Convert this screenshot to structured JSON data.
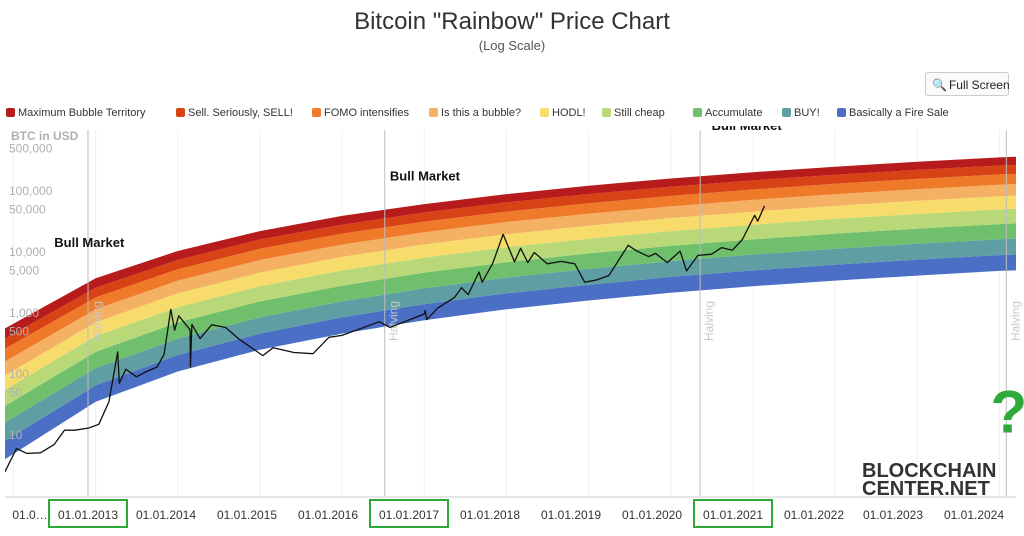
{
  "page": {
    "title": "Bitcoin \"Rainbow\" Price Chart",
    "subtitle": "(Log Scale)",
    "fullscreen_label": "Full Screen",
    "fullscreen_icon": "magnifier-icon"
  },
  "legend": [
    {
      "label": "Maximum Bubble Territory",
      "color": "#b71c1c"
    },
    {
      "label": "Sell. Seriously, SELL!",
      "color": "#d84315"
    },
    {
      "label": "FOMO intensifies",
      "color": "#ef7a2a"
    },
    {
      "label": "Is this a bubble?",
      "color": "#f4b163"
    },
    {
      "label": "HODL!",
      "color": "#f8dc6b"
    },
    {
      "label": "Still cheap",
      "color": "#b9d979"
    },
    {
      "label": "Accumulate",
      "color": "#6fbf6d"
    },
    {
      "label": "BUY!",
      "color": "#5f9fa3"
    },
    {
      "label": "Basically a Fire Sale",
      "color": "#4a6fc4"
    }
  ],
  "chart_data": {
    "type": "line",
    "title": "Bitcoin \"Rainbow\" Price Chart",
    "subtitle": "(Log Scale)",
    "ylabel": "BTC in USD",
    "yscale": "log",
    "ylim": [
      1,
      1000000
    ],
    "xlim": [
      "2011-11-25",
      "2024-03-15"
    ],
    "y_ticks": [
      "500,000",
      "100,000",
      "50,000",
      "10,000",
      "5,000",
      "1,000",
      "500",
      "100",
      "50",
      "10"
    ],
    "y_tick_values": [
      500000,
      100000,
      50000,
      10000,
      5000,
      1000,
      500,
      100,
      50,
      10
    ],
    "x_tick_labels": [
      "01.0…",
      "01.01.2013",
      "01.01.2014",
      "01.01.2015",
      "01.01.2016",
      "01.01.2017",
      "01.01.2018",
      "01.01.2019",
      "01.01.2020",
      "01.01.2021",
      "01.01.2022",
      "01.01.2023",
      "01.01.2024"
    ],
    "x_tick_dates": [
      "2012-01-01",
      "2013-01-01",
      "2014-01-01",
      "2015-01-01",
      "2016-01-01",
      "2017-01-01",
      "2018-01-01",
      "2019-01-01",
      "2020-01-01",
      "2021-01-01",
      "2022-01-01",
      "2023-01-01",
      "2024-01-01"
    ],
    "highlighted_x_ticks": [
      "01.01.2013",
      "01.01.2017",
      "01.01.2021"
    ],
    "halvings": [
      {
        "label": "Halving",
        "date": "2012-11-28"
      },
      {
        "label": "Halving",
        "date": "2016-07-09"
      },
      {
        "label": "Halving",
        "date": "2020-05-11"
      },
      {
        "label": "Halving",
        "date": "2024-02-01"
      }
    ],
    "annotations": [
      {
        "text": "Bull Market",
        "date": "2012-07-01",
        "value": 12000
      },
      {
        "text": "Bull Market",
        "date": "2016-08-01",
        "value": 150000
      },
      {
        "text": "Bull Market",
        "date": "2020-07-01",
        "value": 1000000
      },
      {
        "text": "?",
        "date": "2024-01-15",
        "value": 20
      }
    ],
    "band_edges": [
      {
        "date": "2011-11-25",
        "values": [
          4,
          8,
          16,
          30,
          55,
          95,
          160,
          260,
          380,
          560
        ]
      },
      {
        "date": "2013-01-01",
        "values": [
          35,
          65,
          125,
          230,
          420,
          700,
          1150,
          1800,
          2600,
          3700
        ]
      },
      {
        "date": "2014-01-01",
        "values": [
          110,
          205,
          380,
          700,
          1250,
          2100,
          3400,
          5200,
          7400,
          10400
        ]
      },
      {
        "date": "2015-01-01",
        "values": [
          250,
          460,
          850,
          1550,
          2750,
          4600,
          7400,
          11300,
          16000,
          22000
        ]
      },
      {
        "date": "2016-01-01",
        "values": [
          460,
          850,
          1550,
          2800,
          5000,
          8300,
          13200,
          20000,
          28000,
          39000
        ]
      },
      {
        "date": "2017-01-01",
        "values": [
          760,
          1400,
          2550,
          4600,
          8100,
          13300,
          21000,
          31500,
          44500,
          61000
        ]
      },
      {
        "date": "2018-01-01",
        "values": [
          1150,
          2100,
          3800,
          6800,
          12000,
          19500,
          31000,
          46000,
          65000,
          89000
        ]
      },
      {
        "date": "2019-01-01",
        "values": [
          1600,
          2900,
          5300,
          9500,
          16500,
          27000,
          42500,
          63000,
          89000,
          122000
        ]
      },
      {
        "date": "2020-01-01",
        "values": [
          2150,
          3900,
          7100,
          12600,
          22000,
          36000,
          56000,
          83000,
          117000,
          160000
        ]
      },
      {
        "date": "2021-01-01",
        "values": [
          2750,
          5000,
          9100,
          16100,
          28000,
          46000,
          71500,
          106000,
          149000,
          203000
        ]
      },
      {
        "date": "2022-01-01",
        "values": [
          3400,
          6200,
          11300,
          20000,
          35000,
          57000,
          88500,
          131000,
          184000,
          250000
        ]
      },
      {
        "date": "2023-01-01",
        "values": [
          4100,
          7500,
          13700,
          24200,
          42000,
          69000,
          107000,
          158000,
          222000,
          301000
        ]
      },
      {
        "date": "2024-01-01",
        "values": [
          4900,
          8900,
          16200,
          28700,
          50000,
          82000,
          127000,
          187000,
          262000,
          356000
        ]
      },
      {
        "date": "2024-03-15",
        "values": [
          5000,
          9100,
          16600,
          29400,
          51200,
          84000,
          130000,
          191000,
          268000,
          364000
        ]
      }
    ],
    "series": [
      {
        "name": "BTC price",
        "color": "#111111",
        "points": [
          [
            "2011-11-25",
            2.5
          ],
          [
            "2012-01-15",
            6
          ],
          [
            "2012-03-01",
            5
          ],
          [
            "2012-05-01",
            5.1
          ],
          [
            "2012-07-01",
            7
          ],
          [
            "2012-08-15",
            12
          ],
          [
            "2012-10-01",
            12
          ],
          [
            "2012-12-01",
            13
          ],
          [
            "2013-01-15",
            15
          ],
          [
            "2013-03-01",
            35
          ],
          [
            "2013-04-09",
            230
          ],
          [
            "2013-04-16",
            70
          ],
          [
            "2013-05-15",
            120
          ],
          [
            "2013-07-01",
            90
          ],
          [
            "2013-08-15",
            110
          ],
          [
            "2013-10-01",
            130
          ],
          [
            "2013-11-01",
            210
          ],
          [
            "2013-12-01",
            1150
          ],
          [
            "2013-12-18",
            520
          ],
          [
            "2014-01-05",
            900
          ],
          [
            "2014-02-25",
            530
          ],
          [
            "2014-02-26",
            130
          ],
          [
            "2014-03-05",
            650
          ],
          [
            "2014-04-10",
            380
          ],
          [
            "2014-06-01",
            640
          ],
          [
            "2014-08-01",
            580
          ],
          [
            "2014-10-01",
            370
          ],
          [
            "2015-01-14",
            200
          ],
          [
            "2015-03-01",
            270
          ],
          [
            "2015-06-01",
            225
          ],
          [
            "2015-08-25",
            215
          ],
          [
            "2015-11-04",
            400
          ],
          [
            "2016-01-01",
            430
          ],
          [
            "2016-06-15",
            720
          ],
          [
            "2016-08-01",
            580
          ],
          [
            "2016-12-31",
            960
          ],
          [
            "2017-01-05",
            1100
          ],
          [
            "2017-01-12",
            780
          ],
          [
            "2017-03-01",
            1200
          ],
          [
            "2017-05-15",
            1800
          ],
          [
            "2017-06-15",
            2600
          ],
          [
            "2017-07-15",
            2000
          ],
          [
            "2017-09-01",
            4700
          ],
          [
            "2017-09-15",
            3200
          ],
          [
            "2017-11-01",
            6500
          ],
          [
            "2017-12-17",
            19500
          ],
          [
            "2018-02-06",
            6900
          ],
          [
            "2018-03-05",
            11500
          ],
          [
            "2018-04-06",
            6700
          ],
          [
            "2018-05-05",
            9800
          ],
          [
            "2018-07-01",
            6400
          ],
          [
            "2018-09-01",
            7000
          ],
          [
            "2018-11-01",
            6400
          ],
          [
            "2018-12-15",
            3200
          ],
          [
            "2019-02-01",
            3450
          ],
          [
            "2019-04-01",
            4100
          ],
          [
            "2019-06-26",
            12900
          ],
          [
            "2019-08-01",
            10500
          ],
          [
            "2019-09-25",
            8400
          ],
          [
            "2019-10-26",
            9500
          ],
          [
            "2019-12-17",
            6700
          ],
          [
            "2020-02-12",
            10300
          ],
          [
            "2020-03-12",
            4900
          ],
          [
            "2020-05-01",
            8800
          ],
          [
            "2020-07-01",
            9200
          ],
          [
            "2020-08-15",
            11800
          ],
          [
            "2020-10-01",
            10700
          ],
          [
            "2020-11-15",
            16000
          ],
          [
            "2021-01-08",
            40000
          ],
          [
            "2021-01-22",
            32000
          ],
          [
            "2021-02-21",
            57000
          ]
        ]
      }
    ],
    "watermark": "BLOCKCHAIN CENTER.NET",
    "legend_position": "top"
  }
}
